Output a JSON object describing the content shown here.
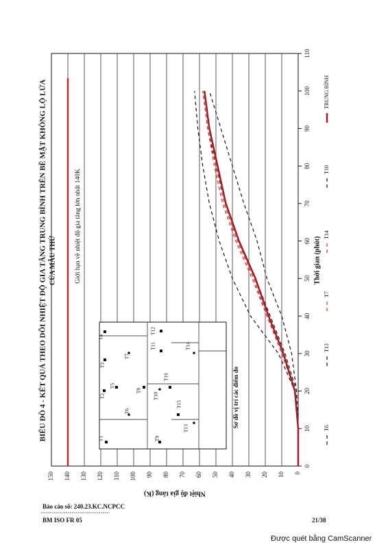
{
  "chart_data": {
    "type": "line",
    "title": "BIỂU ĐỒ 4 - KẾT QUẢ THEO DÕI NHIỆT ĐỘ GIA TĂNG TRUNG BÌNH TRÊN BỀ MẶT KHÔNG LỘ LỬA",
    "subtitle": "CỦA MẪU THỬ",
    "x_label": "Thời gian (phút)",
    "y_label": "Nhiệt độ gia tăng (K)",
    "x": [
      0,
      10,
      20,
      30,
      40,
      50,
      60,
      70,
      80,
      90,
      100
    ],
    "series": [
      {
        "name": "T6",
        "color": "#222222",
        "dashed": true,
        "values": [
          0,
          0,
          1,
          8,
          17,
          26,
          36,
          44,
          50,
          55,
          58
        ]
      },
      {
        "name": "T13",
        "color": "#222222",
        "dashed": true,
        "values": [
          0,
          0,
          2,
          12,
          29,
          40,
          48,
          54,
          58,
          61,
          63
        ]
      },
      {
        "name": "T7",
        "color": "#d63a3a",
        "dashed": true,
        "values": [
          0,
          0,
          2,
          9,
          19,
          27,
          37,
          45,
          50,
          54,
          57
        ]
      },
      {
        "name": "T14",
        "color": "#d63a3a",
        "dashed": true,
        "values": [
          0,
          0,
          2,
          10,
          19,
          28,
          38,
          46,
          51,
          55,
          58
        ]
      },
      {
        "name": "T10",
        "color": "#222222",
        "dashed": true,
        "values": [
          0,
          0,
          1,
          4,
          10,
          19,
          25,
          33,
          40,
          47,
          54
        ]
      },
      {
        "name": "TRUNG BÌNH",
        "color": "#a51d24",
        "dashed": false,
        "values": [
          0,
          0,
          2,
          9,
          18,
          26,
          36,
          44,
          49,
          54,
          57
        ]
      }
    ],
    "limit": {
      "value": 140,
      "label": "Giới hạn về nhiệt độ gia tăng lớn nhất 140K",
      "color": "#c0282d"
    },
    "xlim": [
      0,
      110
    ],
    "xticks": [
      0,
      10,
      20,
      30,
      40,
      50,
      60,
      70,
      80,
      90,
      100,
      110
    ],
    "ylim": [
      0,
      150
    ],
    "yticks": [
      0,
      10,
      20,
      30,
      40,
      50,
      60,
      70,
      80,
      90,
      100,
      110,
      120,
      130,
      140,
      150
    ],
    "grid": "y"
  },
  "inset": {
    "caption": "Sơ đồ vị trí các điểm đo",
    "points": [
      "T1",
      "T2",
      "T3",
      "T4",
      "T5",
      "T6",
      "T7",
      "T8",
      "T9",
      "T10",
      "T11",
      "T12",
      "T13",
      "T14",
      "T15",
      "T16"
    ]
  },
  "footer": {
    "report": "Báo cáo số: 240.23.KC.NCPCC",
    "form": "BM ISO FR 05",
    "page": "21/38",
    "scanner": "Được quét bằng CamScanner"
  }
}
